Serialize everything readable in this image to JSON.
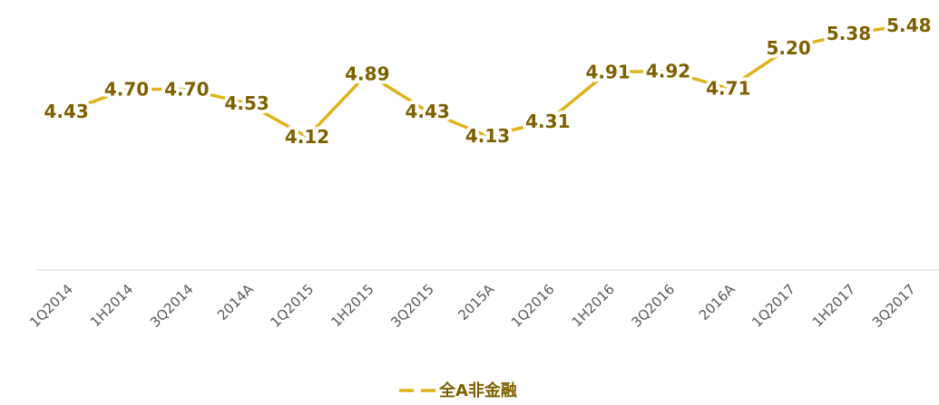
{
  "chart_data": {
    "type": "line",
    "categories": [
      "1Q2014",
      "1H2014",
      "3Q2014",
      "2014A",
      "1Q2015",
      "1H2015",
      "3Q2015",
      "2015A",
      "1Q2016",
      "1H2016",
      "3Q2016",
      "2016A",
      "1Q2017",
      "1H2017",
      "3Q2017"
    ],
    "series": [
      {
        "name": "全A非金融",
        "color": "#e0b21c",
        "values": [
          4.43,
          4.7,
          4.7,
          4.53,
          4.12,
          4.89,
          4.43,
          4.13,
          4.31,
          4.91,
          4.92,
          4.71,
          5.2,
          5.38,
          5.48
        ],
        "value_labels": [
          "4.43",
          "4.70",
          "4.70",
          "4.53",
          "4.12",
          "4.89",
          "4.43",
          "4.13",
          "4.31",
          "4.91",
          "4.92",
          "4.71",
          "5.20",
          "5.38",
          "5.48"
        ]
      }
    ],
    "ylim": [
      2.5,
      5.5
    ],
    "grid": false,
    "legend": "bottom"
  }
}
